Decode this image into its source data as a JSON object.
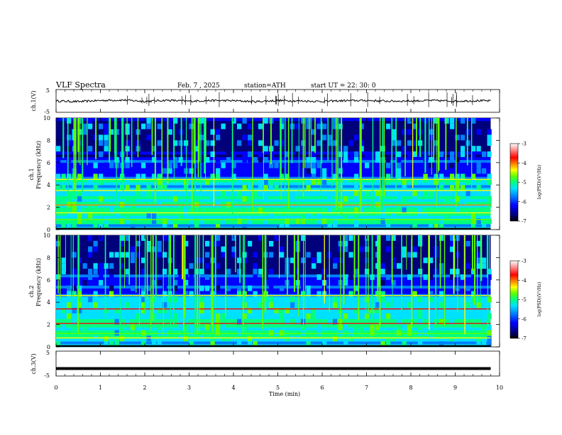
{
  "header": {
    "title": "VLF  Spectra",
    "date": "Feb. 7  , 2025",
    "station": "station=ATH",
    "start": "start  UT  =   22: 30: 0"
  },
  "chart_data": [
    {
      "type": "line",
      "panel": "ch1-waveform",
      "ylabel": "ch.1(V)",
      "ylim": [
        -5,
        5
      ],
      "yticks": [
        "5",
        "-5"
      ],
      "x": [
        0,
        0.5,
        1,
        1.5,
        2,
        2.5,
        3,
        3.5,
        4,
        4.5,
        5,
        5.5,
        6,
        6.5,
        7,
        7.5,
        8,
        8.5,
        9,
        9.5,
        9.8
      ],
      "y": [
        0,
        -0.3,
        0.2,
        0.4,
        -0.2,
        0.3,
        -0.1,
        0.2,
        0.1,
        -0.3,
        0.2,
        0.0,
        -0.2,
        0.1,
        0.2,
        -0.1,
        0.0,
        0.2,
        -0.1,
        0.1,
        0.0
      ],
      "color": "#000000"
    },
    {
      "type": "heatmap",
      "panel": "ch1-spectrogram",
      "ylabel_channel": "ch.1",
      "ylabel": "Frequency  (kHz)",
      "ylim": [
        0,
        10
      ],
      "yticks": [
        "0",
        "2",
        "4",
        "6",
        "8",
        "10"
      ],
      "xlim": [
        0,
        10
      ],
      "data_end_min": 9.8,
      "colorbar": {
        "label": "log(PSD)(V²/Hz)",
        "range": [
          -7,
          -3
        ],
        "ticks": [
          "-3",
          "-4",
          "-5",
          "-6",
          "-7"
        ]
      }
    },
    {
      "type": "heatmap",
      "panel": "ch2-spectrogram",
      "ylabel_channel": "ch.2",
      "ylabel": "Frequency  (kHz)",
      "ylim": [
        0,
        10
      ],
      "yticks": [
        "0",
        "2",
        "4",
        "6",
        "8",
        "10"
      ],
      "xlim": [
        0,
        10
      ],
      "data_end_min": 9.8,
      "colorbar": {
        "label": "log(PSD)(V²/Hz)",
        "range": [
          -7,
          -3
        ],
        "ticks": [
          "-3",
          "-4",
          "-5",
          "-6",
          "-7"
        ]
      }
    },
    {
      "type": "line",
      "panel": "ch3-waveform",
      "ylabel": "ch.3(V)",
      "ylim": [
        -5,
        5
      ],
      "yticks": [
        "5",
        "-5"
      ],
      "x": [
        0,
        9.8
      ],
      "y": [
        -2,
        -2
      ],
      "color": "#000000"
    }
  ],
  "xaxis": {
    "label": "Time  (min)",
    "range": [
      0,
      10
    ],
    "ticks": [
      "0",
      "1",
      "2",
      "3",
      "4",
      "5",
      "6",
      "7",
      "8",
      "9",
      "10"
    ]
  },
  "colors": {
    "spectrogram_scale": [
      "#000000",
      "#00007a",
      "#0000ff",
      "#0080ff",
      "#00e0ff",
      "#00ff80",
      "#60ff00",
      "#ffff00",
      "#ff8000",
      "#ff0000",
      "#ff9090",
      "#ffffff"
    ]
  }
}
